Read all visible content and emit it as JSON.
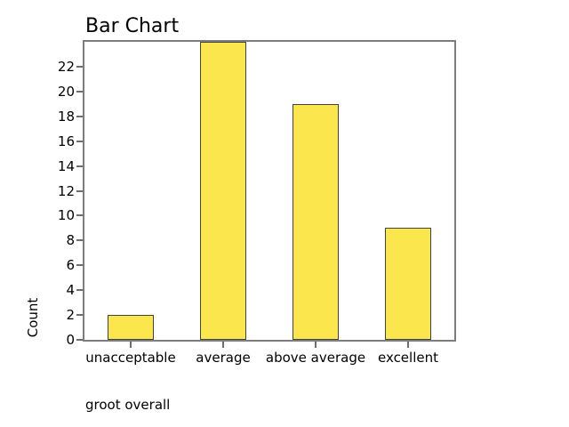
{
  "chart_data": {
    "type": "bar",
    "title": "Bar Chart",
    "categories": [
      "unacceptable",
      "average",
      "above average",
      "excellent"
    ],
    "values": [
      2,
      24,
      19,
      9
    ],
    "xlabel": "groot overall",
    "ylabel": "Count",
    "ylim": [
      0,
      24
    ],
    "yticks": [
      0,
      2,
      4,
      6,
      8,
      10,
      12,
      14,
      16,
      18,
      20,
      22
    ],
    "grid": false,
    "legend": "none",
    "colors": {
      "bar_fill": "#FBE64D",
      "bar_edge": "#424242",
      "axis_frame": "#7D7D7D",
      "tick_mark": "#6E6E6E",
      "text": "#000000"
    }
  }
}
